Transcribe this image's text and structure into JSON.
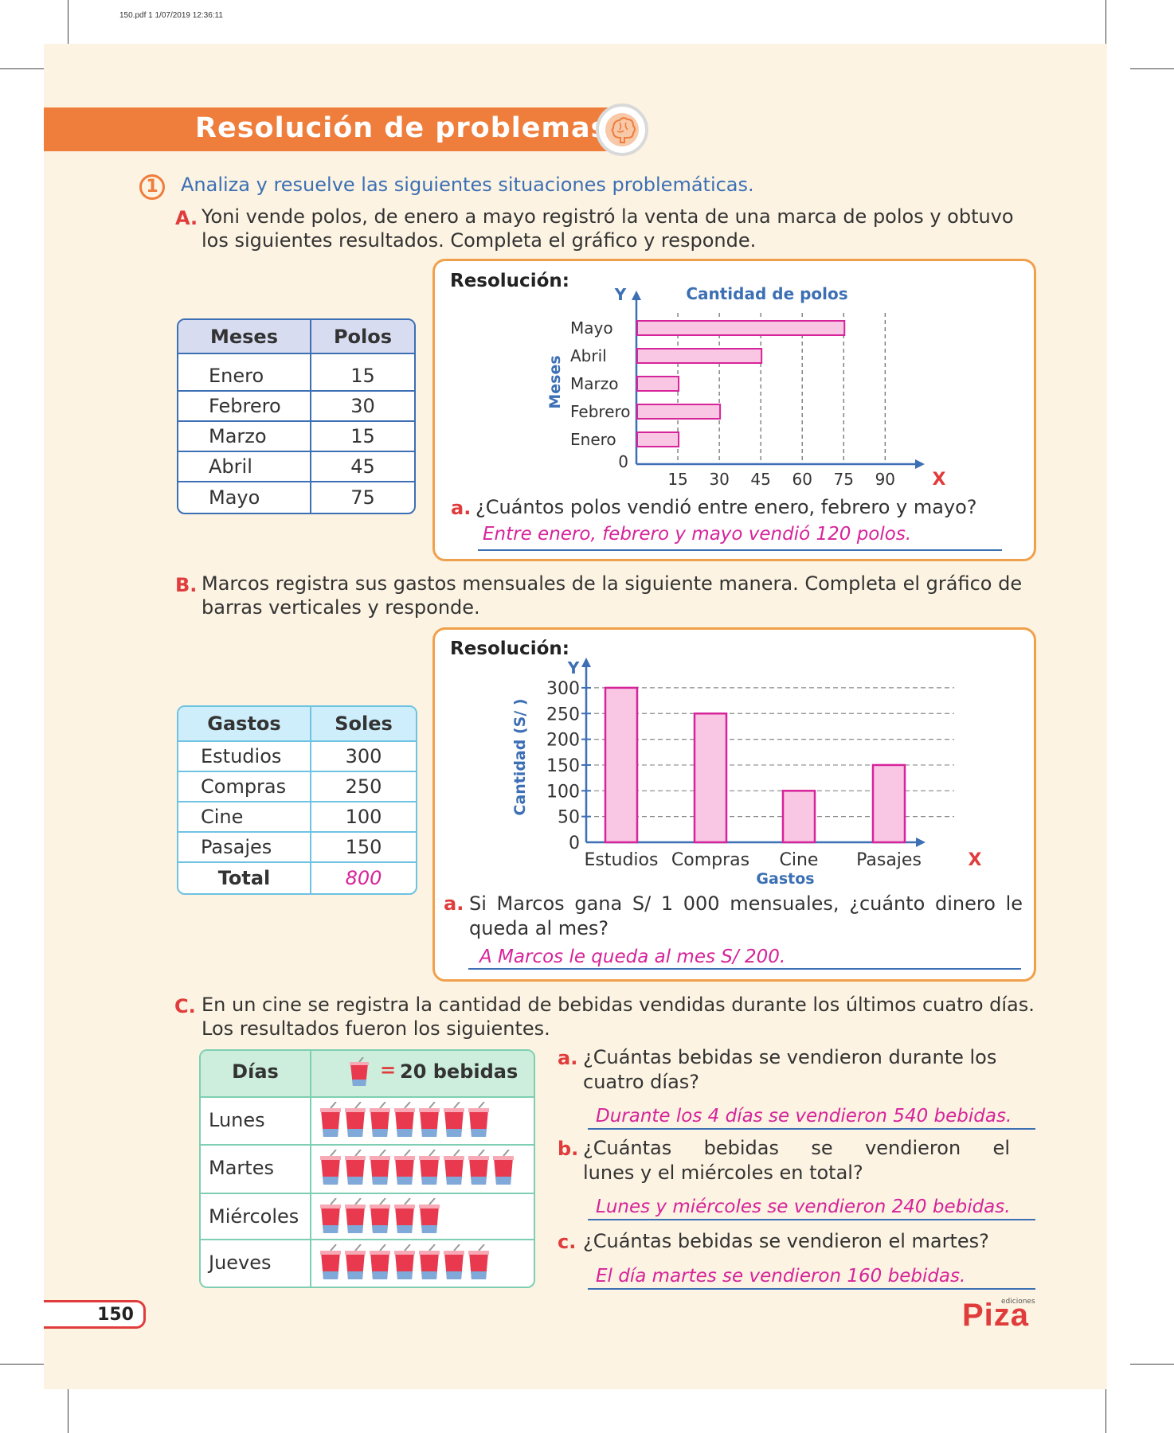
{
  "file_info": "150.pdf   1   1/07/2019   12:36:11",
  "title": "Resolución de problemas",
  "exercise_number": "1",
  "intro": "Analiza y resuelve las siguientes situaciones problemáticas.",
  "section_a": {
    "letter": "A.",
    "text_line1": "Yoni vende polos, de enero a mayo registró la venta de una marca de polos y obtuvo",
    "text_line2": "los siguientes resultados. Completa el gráfico y responde.",
    "table": {
      "headers": [
        "Meses",
        "Polos"
      ],
      "rows": [
        [
          "Enero",
          "15"
        ],
        [
          "Febrero",
          "30"
        ],
        [
          "Marzo",
          "15"
        ],
        [
          "Abril",
          "45"
        ],
        [
          "Mayo",
          "75"
        ]
      ]
    },
    "resolution_label": "Resolución:",
    "question_letter": "a.",
    "question": "¿Cuántos polos vendió entre enero, febrero y mayo?",
    "answer": "Entre enero, febrero y mayo vendió 120 polos."
  },
  "section_b": {
    "letter": "B.",
    "text_line1": "Marcos registra sus gastos mensuales de la siguiente manera. Completa el gráfico de",
    "text_line2": "barras verticales y responde.",
    "table": {
      "headers": [
        "Gastos",
        "Soles"
      ],
      "rows": [
        [
          "Estudios",
          "300"
        ],
        [
          "Compras",
          "250"
        ],
        [
          "Cine",
          "100"
        ],
        [
          "Pasajes",
          "150"
        ]
      ],
      "total_label": "Total",
      "total_value": "800"
    },
    "resolution_label": "Resolución:",
    "question_letter": "a.",
    "question_line1": "Si Marcos gana S/ 1 000 mensuales, ¿cuánto dinero le",
    "question_line2": "queda al mes?",
    "answer": "A Marcos le queda al mes S/ 200."
  },
  "section_c": {
    "letter": "C.",
    "text_line1": "En un cine se registra la cantidad de bebidas vendidas durante los últimos cuatro días.",
    "text_line2": "Los resultados fueron los siguientes.",
    "table": {
      "header_days": "Días",
      "header_key_eq": "=",
      "header_key": "20 bebidas",
      "rows": [
        {
          "day": "Lunes",
          "cups": 7
        },
        {
          "day": "Martes",
          "cups": 8
        },
        {
          "day": "Miércoles",
          "cups": 5
        },
        {
          "day": "Jueves",
          "cups": 7
        }
      ]
    },
    "questions": [
      {
        "letter": "a.",
        "line1": "¿Cuántas bebidas se vendieron durante los",
        "line2": "cuatro días?",
        "answer": "Durante los 4 días se vendieron 540 bebidas."
      },
      {
        "letter": "b.",
        "line1": "¿Cuántas  bebidas  se  vendieron  el",
        "line2": "lunes y el miércoles en total?",
        "answer": "Lunes y miércoles se vendieron 240 bebidas."
      },
      {
        "letter": "c.",
        "line1": "¿Cuántas bebidas se vendieron el martes?",
        "line2": "",
        "answer": "El día martes se vendieron 160 bebidas."
      }
    ]
  },
  "page_number": "150",
  "logo": "Piza",
  "logo_small": "ediciones",
  "colors": {
    "accent": "#ef7d3c",
    "bar_fill": "#f9c6e3",
    "bar_stroke": "#d6249a",
    "axis": "#3c6fb4",
    "answer": "#d6249a",
    "letter": "#e03c3c"
  },
  "chart_data": [
    {
      "type": "bar",
      "orientation": "horizontal",
      "title": "Cantidad de polos",
      "xlabel": "X",
      "ylabel": "Meses",
      "y_axis_letter": "Y",
      "origin_label": "0",
      "categories": [
        "Enero",
        "Febrero",
        "Marzo",
        "Abril",
        "Mayo"
      ],
      "values": [
        15,
        30,
        15,
        45,
        75
      ],
      "xticks": [
        15,
        30,
        45,
        60,
        75,
        90
      ],
      "xlim": [
        0,
        90
      ],
      "grid": "vertical dashed"
    },
    {
      "type": "bar",
      "orientation": "vertical",
      "title": "",
      "xlabel": "Gastos",
      "x_axis_letter": "X",
      "ylabel": "Cantidad (S/ )",
      "y_axis_letter": "Y",
      "categories": [
        "Estudios",
        "Compras",
        "Cine",
        "Pasajes"
      ],
      "values": [
        300,
        250,
        100,
        150
      ],
      "yticks": [
        0,
        50,
        100,
        150,
        200,
        250,
        300
      ],
      "ylim": [
        0,
        300
      ],
      "grid": "horizontal dashed"
    }
  ]
}
